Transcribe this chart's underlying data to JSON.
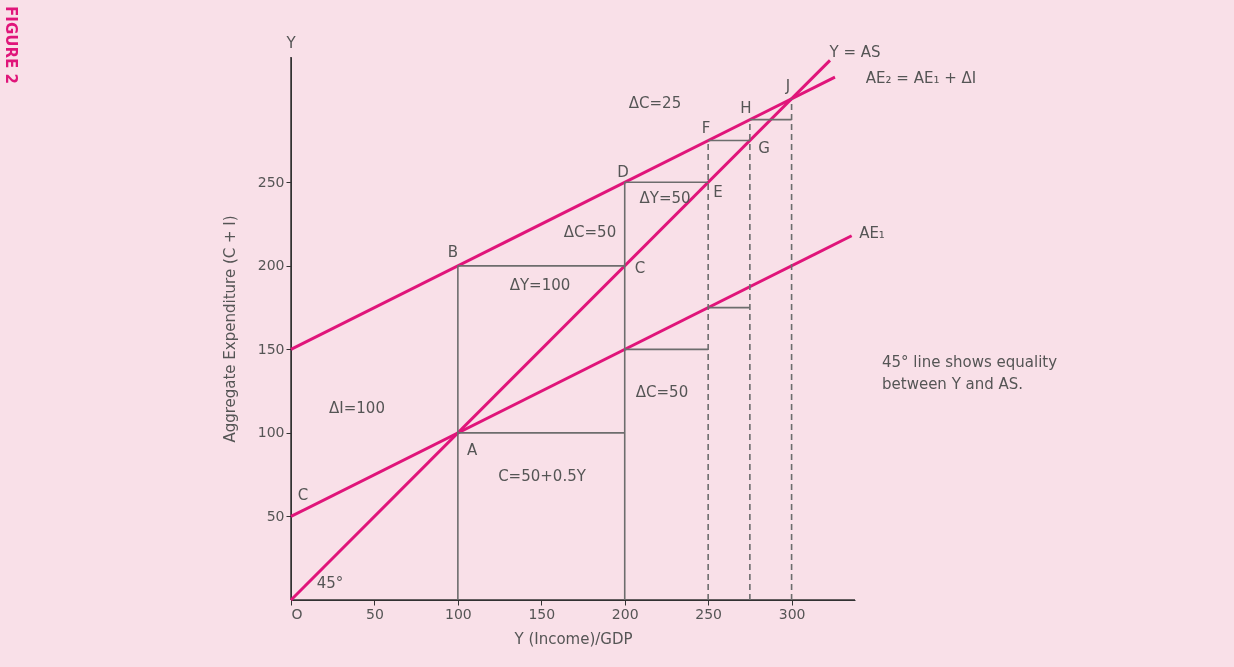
{
  "chart_data": {
    "type": "line",
    "xlabel": "Y (Income)/GDP",
    "ylabel": "Aggregate Expenditure (C + I)",
    "xlim": [
      0,
      338
    ],
    "ylim": [
      0,
      325
    ],
    "xticks": [
      {
        "value": 0,
        "label": "O"
      },
      50,
      100,
      150,
      200,
      250,
      300
    ],
    "yticks": [
      50,
      100,
      150,
      200,
      250
    ],
    "marker": "none",
    "series": [
      {
        "color": "#e0157a",
        "x": [
          0,
          323
        ],
        "values": [
          0,
          323
        ]
      },
      {
        "color": "#e0157a",
        "x": [
          0,
          326
        ],
        "values": [
          150,
          313
        ]
      },
      {
        "color": "#e0157a",
        "x": [
          0,
          336
        ],
        "values": [
          50,
          218
        ]
      },
      {
        "color": "#6d6d6d",
        "x": [
          100,
          100
        ],
        "values": [
          0,
          200
        ]
      },
      {
        "color": "#6d6d6d",
        "x": [
          100,
          200
        ],
        "values": [
          100,
          100
        ]
      },
      {
        "color": "#6d6d6d",
        "x": [
          100,
          200
        ],
        "values": [
          200,
          200
        ]
      },
      {
        "color": "#6d6d6d",
        "x": [
          200,
          200
        ],
        "values": [
          0,
          250
        ]
      },
      {
        "color": "#6d6d6d",
        "x": [
          200,
          250
        ],
        "values": [
          150,
          150
        ]
      },
      {
        "color": "#6d6d6d",
        "x": [
          200,
          250
        ],
        "values": [
          250,
          250
        ]
      },
      {
        "color": "#6d6d6d",
        "x": [
          250,
          275
        ],
        "values": [
          175,
          175
        ]
      },
      {
        "color": "#6d6d6d",
        "x": [
          250,
          275
        ],
        "values": [
          275,
          275
        ]
      },
      {
        "color": "#6d6d6d",
        "x": [
          275,
          300
        ],
        "values": [
          287.5,
          287.5
        ]
      },
      {
        "color": "#6d6d6d",
        "line_style": "dashed",
        "x": [
          250,
          250
        ],
        "values": [
          0,
          275
        ]
      },
      {
        "color": "#6d6d6d",
        "line_style": "dashed",
        "x": [
          275,
          275
        ],
        "values": [
          0,
          287.5
        ]
      },
      {
        "color": "#6d6d6d",
        "line_style": "dashed",
        "x": [
          300,
          300
        ],
        "values": [
          0,
          300
        ]
      }
    ],
    "annotations": [
      "A",
      "B",
      "C",
      "D",
      "E",
      "F",
      "G",
      "H",
      "J",
      "C",
      "ΔI=100",
      "ΔY=100",
      "ΔC=50",
      "ΔY=50",
      "ΔC=25",
      "ΔC=50",
      "C=50+0.5Y",
      "45°",
      "Y = AS",
      "AE₂ = AE₁ + ΔI",
      "AE₁",
      "Y",
      "45° line shows equality\nbetween Y and AS.",
      "FIGURE 2"
    ]
  }
}
